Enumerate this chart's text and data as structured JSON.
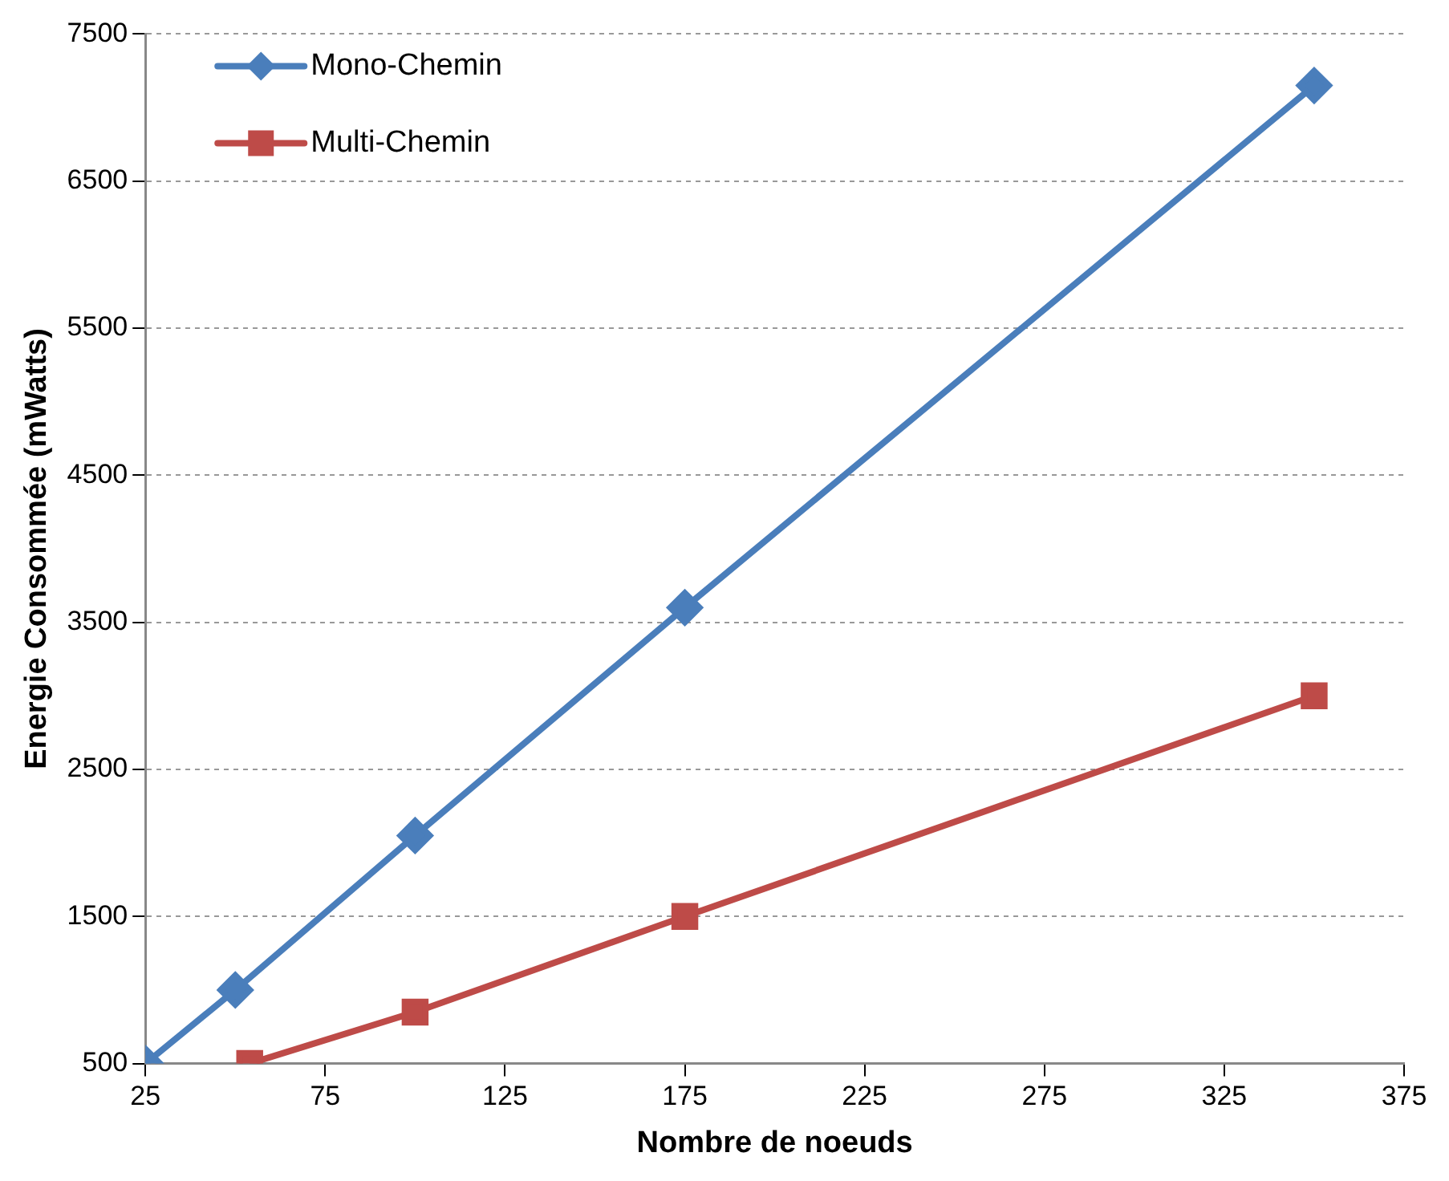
{
  "chart_data": {
    "type": "line",
    "xlabel": "Nombre de noeuds",
    "ylabel": "Energie Consommée (mWatts)",
    "xlim": [
      25,
      375
    ],
    "xticks": [
      25,
      75,
      125,
      175,
      225,
      275,
      325,
      375
    ],
    "ylim": [
      500,
      7500
    ],
    "yticks": [
      500,
      1500,
      2500,
      3500,
      4500,
      5500,
      6500,
      7500
    ],
    "grid": "y",
    "legend": "top left",
    "line_style": "solid",
    "series": [
      {
        "name": "Mono-Chemin",
        "color": "#4a7ebb",
        "marker": "diamond",
        "x": [
          25,
          50,
          100,
          175,
          350
        ],
        "values": [
          500,
          1000,
          2050,
          3600,
          7150
        ]
      },
      {
        "name": "Multi-Chemin",
        "color": "#be4b48",
        "marker": "square",
        "x": [
          54,
          100,
          175,
          350
        ],
        "values": [
          500,
          850,
          1500,
          3000
        ]
      }
    ]
  }
}
